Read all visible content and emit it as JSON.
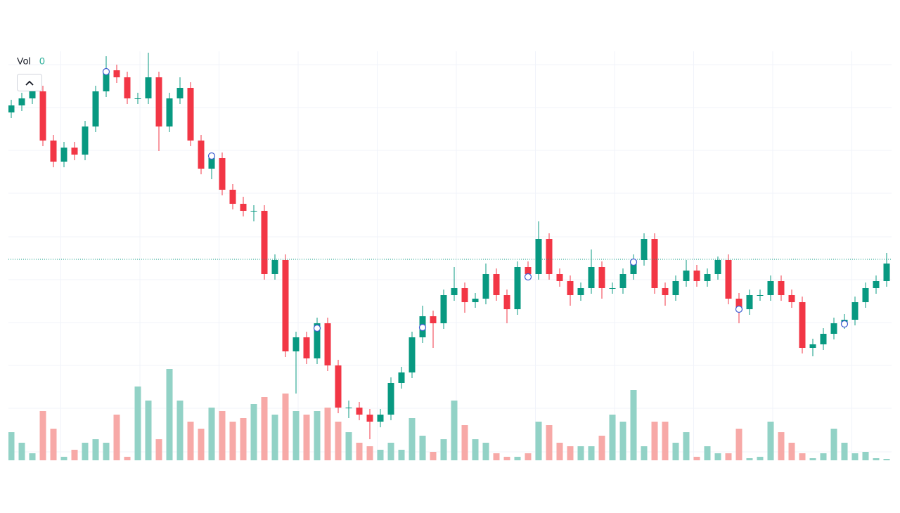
{
  "chart_data": {
    "type": "candlestick",
    "legend_label": "Vol",
    "legend_value": "0",
    "up_color": "#089981",
    "down_color": "#f23645",
    "up_volume_color": "#92d2c6",
    "down_volume_color": "#f7a9a7",
    "marker_color": "#3d5bd1",
    "ylim": [
      0,
      582
    ],
    "yticks": [
      12,
      74,
      135,
      196,
      257,
      318,
      380,
      441,
      502,
      563
    ],
    "xticks": [
      4.7,
      12.2,
      19.7,
      27.2,
      34.7,
      42.2,
      49.7,
      57.2,
      64.7,
      72.2,
      79.7
    ],
    "grid": true,
    "volume_ylim": [
      0,
      582
    ],
    "price_line": 286,
    "open": [
      495,
      505,
      515,
      525,
      455,
      425,
      445,
      435,
      475,
      525,
      555,
      545,
      515,
      515,
      545,
      475,
      515,
      530,
      455,
      415,
      430,
      385,
      365,
      355,
      355,
      265,
      285,
      155,
      175,
      145,
      195,
      135,
      75,
      75,
      65,
      55,
      65,
      110,
      125,
      175,
      205,
      195,
      235,
      245,
      225,
      230,
      265,
      235,
      215,
      275,
      265,
      315,
      265,
      255,
      235,
      245,
      275,
      245,
      245,
      265,
      285,
      315,
      245,
      235,
      255,
      270,
      255,
      265,
      285,
      230,
      215,
      235,
      235,
      255,
      235,
      225,
      160,
      165,
      180,
      195,
      200,
      225,
      245,
      255
    ],
    "high": [
      513,
      523,
      533,
      533,
      463,
      453,
      453,
      483,
      533,
      575,
      563,
      553,
      523,
      580,
      553,
      523,
      545,
      538,
      463,
      438,
      438,
      393,
      375,
      363,
      363,
      293,
      293,
      183,
      183,
      203,
      203,
      143,
      85,
      83,
      73,
      73,
      118,
      133,
      183,
      220,
      213,
      243,
      275,
      253,
      238,
      280,
      273,
      243,
      283,
      283,
      340,
      323,
      273,
      263,
      253,
      300,
      283,
      253,
      273,
      293,
      323,
      323,
      253,
      263,
      285,
      278,
      273,
      290,
      293,
      238,
      243,
      243,
      263,
      263,
      243,
      233,
      173,
      188,
      203,
      208,
      233,
      253,
      263,
      295
    ],
    "low": [
      487,
      497,
      507,
      447,
      417,
      417,
      427,
      427,
      467,
      517,
      537,
      507,
      507,
      507,
      440,
      467,
      507,
      447,
      407,
      400,
      377,
      357,
      347,
      340,
      257,
      257,
      147,
      95,
      137,
      137,
      127,
      67,
      60,
      57,
      30,
      47,
      57,
      102,
      117,
      167,
      160,
      187,
      227,
      210,
      217,
      222,
      227,
      195,
      207,
      257,
      257,
      257,
      247,
      220,
      227,
      237,
      230,
      237,
      237,
      257,
      277,
      237,
      220,
      227,
      247,
      247,
      247,
      257,
      222,
      195,
      207,
      227,
      227,
      227,
      217,
      152,
      148,
      157,
      172,
      187,
      192,
      217,
      237,
      247
    ],
    "close": [
      505,
      515,
      525,
      455,
      425,
      445,
      435,
      475,
      525,
      555,
      545,
      515,
      515,
      545,
      475,
      515,
      530,
      455,
      415,
      430,
      385,
      365,
      355,
      355,
      265,
      285,
      155,
      175,
      145,
      195,
      135,
      75,
      75,
      65,
      55,
      65,
      110,
      125,
      175,
      205,
      195,
      235,
      245,
      225,
      230,
      265,
      235,
      215,
      275,
      265,
      315,
      265,
      255,
      235,
      245,
      275,
      245,
      245,
      265,
      285,
      315,
      245,
      235,
      255,
      270,
      255,
      265,
      285,
      230,
      215,
      235,
      235,
      255,
      235,
      225,
      160,
      165,
      180,
      195,
      200,
      225,
      245,
      255,
      280
    ],
    "volume": [
      40,
      25,
      10,
      70,
      45,
      5,
      15,
      25,
      30,
      25,
      65,
      5,
      105,
      85,
      30,
      130,
      85,
      55,
      45,
      75,
      70,
      55,
      60,
      80,
      90,
      65,
      95,
      70,
      65,
      70,
      75,
      55,
      40,
      25,
      20,
      15,
      25,
      15,
      60,
      35,
      12,
      30,
      85,
      50,
      30,
      25,
      10,
      5,
      5,
      10,
      55,
      50,
      25,
      20,
      20,
      20,
      35,
      65,
      55,
      100,
      20,
      55,
      55,
      25,
      40,
      5,
      20,
      10,
      10,
      45,
      3,
      5,
      55,
      40,
      25,
      10,
      3,
      10,
      45,
      25,
      10,
      12,
      3,
      2
    ],
    "markers": [
      {
        "index": 9,
        "value": 553
      },
      {
        "index": 19,
        "value": 433
      },
      {
        "index": 29,
        "value": 188
      },
      {
        "index": 39,
        "value": 189
      },
      {
        "index": 49,
        "value": 261
      },
      {
        "index": 59,
        "value": 282
      },
      {
        "index": 69,
        "value": 215
      },
      {
        "index": 79,
        "value": 194
      }
    ]
  }
}
